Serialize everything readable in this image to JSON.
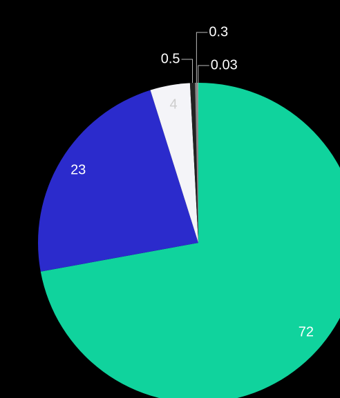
{
  "chart_data": {
    "type": "pie",
    "categories": [
      null,
      null,
      null,
      null,
      null,
      null
    ],
    "values": [
      72,
      23,
      4,
      0.5,
      0.3,
      0.03
    ],
    "colors": [
      "#10d39d",
      "#2b2bcc",
      "#f4f4f8",
      "#222222",
      "#888888",
      "#d8d8d8"
    ]
  }
}
